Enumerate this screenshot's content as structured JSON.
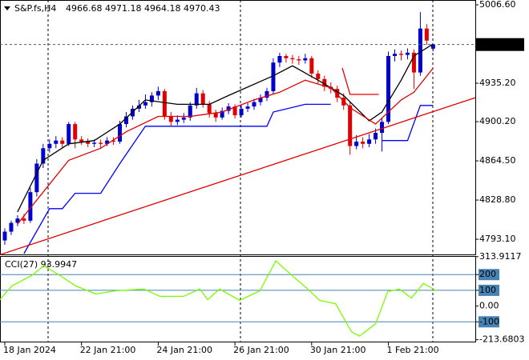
{
  "chart_data": [
    {
      "type": "candlestick",
      "title": "S&P.fs,H4",
      "subtitle": "4966.68 4971.18 4964.18 4970.43",
      "categories": [
        "18 Jan 2024",
        null,
        null,
        null,
        null,
        null,
        null,
        null,
        null,
        null,
        null,
        null,
        "22 Jan 21:00",
        null,
        null,
        null,
        null,
        null,
        null,
        null,
        null,
        null,
        null,
        null,
        "24 Jan 21:00",
        null,
        null,
        null,
        null,
        null,
        null,
        null,
        null,
        null,
        null,
        null,
        "26 Jan 21:00",
        null,
        null,
        null,
        null,
        null,
        null,
        null,
        null,
        null,
        null,
        null,
        "30 Jan 21:00",
        null,
        null,
        null,
        null,
        null,
        null,
        null,
        null,
        null,
        null,
        null,
        "1 Feb 21:00",
        null,
        null,
        null,
        null,
        null,
        null,
        null
      ],
      "open": [
        4792,
        4800,
        4808,
        4812,
        4810,
        4836,
        4862,
        4876,
        4880,
        4883,
        4880,
        4898,
        4884,
        4882,
        4880,
        4881,
        4880,
        4883,
        4882,
        4898,
        4905,
        4912,
        4915,
        4918,
        4924,
        4928,
        4905,
        4900,
        4902,
        4904,
        4915,
        4926,
        4916,
        4908,
        4904,
        4910,
        4914,
        4906,
        4912,
        4914,
        4918,
        4922,
        4928,
        4954,
        4960,
        4958,
        4957,
        4956,
        4958,
        4944,
        4939,
        4932,
        4930,
        4922,
        4915,
        4878,
        4882,
        4880,
        4884,
        4890,
        4900,
        4960,
        4962,
        4961,
        4963,
        4945,
        4985,
        4966.68
      ],
      "high": [
        4803,
        4810,
        4815,
        4816,
        4840,
        4866,
        4880,
        4884,
        4887,
        4886,
        4900,
        4900,
        4887,
        4885,
        4884,
        4884,
        4886,
        4886,
        4901,
        4909,
        4915,
        4920,
        4925,
        4927,
        4932,
        4930,
        4909,
        4906,
        4908,
        4918,
        4931,
        4929,
        4919,
        4911,
        4913,
        4917,
        4916,
        4915,
        4917,
        4921,
        4925,
        4931,
        4958,
        4963,
        4962,
        4961,
        4960,
        4962,
        4960,
        4947,
        4942,
        4936,
        4933,
        4926,
        4918,
        4888,
        4886,
        4889,
        4894,
        4904,
        4964,
        4966,
        4965,
        4967,
        4966,
        5000,
        4989,
        4971.18
      ],
      "low": [
        4788,
        4797,
        4805,
        4807,
        4808,
        4832,
        4858,
        4872,
        4876,
        4876,
        4878,
        4876,
        4879,
        4877,
        4877,
        4876,
        4878,
        4879,
        4880,
        4895,
        4902,
        4909,
        4912,
        4914,
        4920,
        4902,
        4896,
        4897,
        4899,
        4901,
        4912,
        4913,
        4904,
        4900,
        4902,
        4907,
        4903,
        4904,
        4909,
        4911,
        4915,
        4919,
        4925,
        4950,
        4954,
        4953,
        4952,
        4953,
        4940,
        4935,
        4928,
        4926,
        4918,
        4911,
        4870,
        4875,
        4876,
        4877,
        4880,
        4873,
        4898,
        4955,
        4956,
        4957,
        4930,
        4942,
        4970,
        4964.18
      ],
      "close": [
        4800,
        4808,
        4812,
        4810,
        4836,
        4862,
        4876,
        4880,
        4883,
        4880,
        4898,
        4884,
        4882,
        4880,
        4881,
        4880,
        4883,
        4882,
        4898,
        4905,
        4912,
        4915,
        4918,
        4924,
        4928,
        4905,
        4900,
        4902,
        4904,
        4915,
        4926,
        4916,
        4908,
        4904,
        4910,
        4914,
        4906,
        4912,
        4914,
        4918,
        4922,
        4928,
        4954,
        4960,
        4958,
        4957,
        4956,
        4958,
        4944,
        4939,
        4932,
        4930,
        4922,
        4915,
        4878,
        4882,
        4880,
        4884,
        4890,
        4900,
        4960,
        4962,
        4961,
        4963,
        4945,
        4985,
        4974,
        4970.43
      ],
      "up_color": "#0000cd",
      "down_color": "#e00000",
      "lines": [
        {
          "color": "#000000",
          "x": [
            2,
            6,
            10,
            14,
            18,
            22,
            27,
            32,
            35,
            42,
            45,
            49,
            53,
            57,
            59,
            62,
            64,
            67
          ],
          "values": [
            4818,
            4865,
            4880,
            4883,
            4898,
            4920,
            4916,
            4916,
            4924,
            4942,
            4951,
            4938,
            4924,
            4901,
            4909,
            4938,
            4960,
            4971
          ]
        },
        {
          "color": "#e00000",
          "x": [
            2,
            6,
            10,
            15,
            19,
            24,
            29,
            34,
            39,
            43,
            47,
            51,
            54,
            58,
            62,
            64,
            67
          ],
          "values": [
            4807,
            4836,
            4865,
            4876,
            4891,
            4905,
            4905,
            4909,
            4920,
            4927,
            4938,
            4931,
            4913,
            4898,
            4920,
            4927,
            4949
          ]
        },
        {
          "color": "#0000ff",
          "x": [
            3,
            7,
            9,
            11,
            15,
            18,
            22,
            41,
            42,
            47,
            51,
            52,
            59,
            63,
            65,
            67
          ],
          "values": [
            4780,
            4821,
            4821,
            4835,
            4835,
            4862,
            4896,
            4896,
            4909,
            4916,
            4916,
            null,
            4883,
            4883,
            4915,
            4915
          ]
        },
        {
          "color": "#e00000",
          "x": [
            -0.75,
            73.6
          ],
          "values": [
            4779,
            4922
          ]
        },
        {
          "color": "#e00000",
          "x": [
            52.8,
            54,
            58.5
          ],
          "values": [
            4949,
            4925,
            4925
          ]
        }
      ],
      "last_price": 4970.43,
      "ylim": [
        4779.3,
        5011.0
      ],
      "yticks": [
        {
          "value": 5006.6,
          "label": "5006.60"
        },
        {
          "value": 4935.2,
          "label": "4935.20"
        },
        {
          "value": 4900.2,
          "label": "4900.20"
        },
        {
          "value": 4864.5,
          "label": "4864.50"
        },
        {
          "value": 4828.8,
          "label": "4828.80"
        },
        {
          "value": 4793.1,
          "label": "4793.10"
        }
      ],
      "xlim": [
        -0.75,
        73.6
      ]
    },
    {
      "type": "line",
      "title": "CCI(27) 93.9947",
      "series": [
        {
          "color": "#7cfc00",
          "x": [
            -0.75,
            1.1,
            4.25,
            6.1,
            8.6,
            11.1,
            14.25,
            17.4,
            21.75,
            24.25,
            28,
            30.5,
            31.75,
            33.6,
            36.75,
            39.9,
            42.4,
            44.9,
            47.4,
            49.25,
            51.75,
            54.25,
            55.5,
            58,
            59.9,
            61.75,
            63.6,
            65.5,
            67.5
          ],
          "values": [
            41,
            128,
            195,
            256,
            195,
            128,
            77,
            97,
            108,
            62,
            62,
            108,
            41,
            108,
            36,
            97,
            287,
            195,
            108,
            36,
            15,
            -164,
            -190,
            -113,
            92,
            108,
            51,
            144,
            97
          ]
        }
      ],
      "levels": [
        200,
        100,
        -100
      ],
      "ylim": [
        -225.6,
        318
      ],
      "yticks": [
        313.9117,
        200,
        100,
        {
          "value": 0,
          "label": "0.00"
        },
        -100,
        -213.6803
      ],
      "xlim": [
        -0.75,
        73.6
      ]
    }
  ]
}
